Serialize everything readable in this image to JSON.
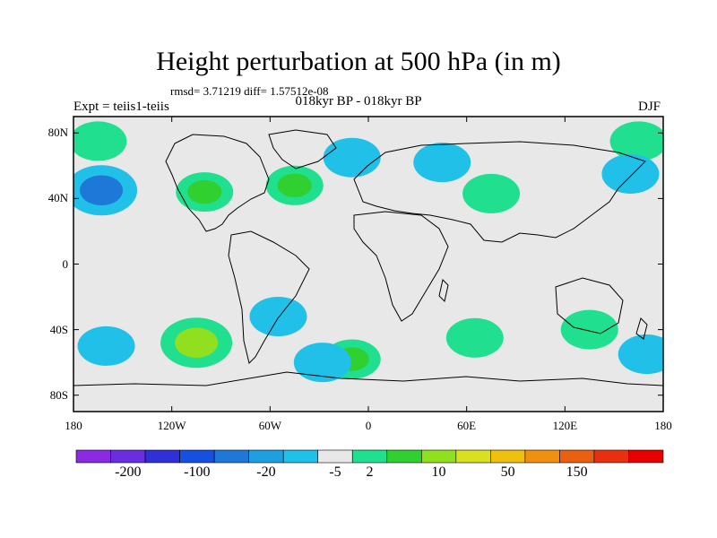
{
  "page": {
    "title": "Height perturbation at 500 hPa (in m)",
    "stats": "rmsd= 3.71219 diff= 1.57512e-08",
    "left_label": "Expt = teiis1-teiis",
    "center_label": "018kyr BP - 018kyr BP",
    "right_label": "DJF"
  },
  "chart_data": {
    "type": "heatmap",
    "title": "Height perturbation at 500 hPa (in m)",
    "xlabel": "",
    "ylabel": "",
    "xlim": [
      -180,
      180
    ],
    "ylim": [
      -90,
      90
    ],
    "x_ticks": [
      {
        "value": -180,
        "label": "180"
      },
      {
        "value": -120,
        "label": "120W"
      },
      {
        "value": -60,
        "label": "60W"
      },
      {
        "value": 0,
        "label": "0"
      },
      {
        "value": 60,
        "label": "60E"
      },
      {
        "value": 120,
        "label": "120E"
      },
      {
        "value": 180,
        "label": "180"
      }
    ],
    "y_ticks": [
      {
        "value": 80,
        "label": "80N"
      },
      {
        "value": 40,
        "label": "40N"
      },
      {
        "value": 0,
        "label": "0"
      },
      {
        "value": -40,
        "label": "40S"
      },
      {
        "value": -80,
        "label": "80S"
      }
    ],
    "colorbar": {
      "colors": [
        "#8a2be2",
        "#6a2ee0",
        "#3030d8",
        "#1550e0",
        "#1e78d8",
        "#1ea0e0",
        "#20c0e8",
        "#e8e8e8",
        "#20e090",
        "#30d030",
        "#90e020",
        "#d8e020",
        "#f0c010",
        "#f09010",
        "#e86010",
        "#e83010",
        "#e80000"
      ],
      "labels": [
        "-200",
        "-100",
        "-20",
        "-5",
        "2",
        "10",
        "50",
        "150"
      ]
    },
    "features": [
      {
        "lon": -163,
        "lat": 45,
        "value": -20
      },
      {
        "lon": -100,
        "lat": 44,
        "value": 10
      },
      {
        "lon": -45,
        "lat": 48,
        "value": 10
      },
      {
        "lon": 75,
        "lat": 43,
        "value": 5
      },
      {
        "lon": 45,
        "lat": 62,
        "value": -5
      },
      {
        "lon": -10,
        "lat": 65,
        "value": -5
      },
      {
        "lon": -165,
        "lat": 75,
        "value": 5
      },
      {
        "lon": 165,
        "lat": 75,
        "value": 5
      },
      {
        "lon": 160,
        "lat": 55,
        "value": -5
      },
      {
        "lon": -160,
        "lat": -50,
        "value": -5
      },
      {
        "lon": -105,
        "lat": -48,
        "value": 50
      },
      {
        "lon": -55,
        "lat": -32,
        "value": -5
      },
      {
        "lon": -10,
        "lat": -58,
        "value": 10
      },
      {
        "lon": -28,
        "lat": -60,
        "value": -5
      },
      {
        "lon": 65,
        "lat": -45,
        "value": 5
      },
      {
        "lon": 135,
        "lat": -40,
        "value": 5
      },
      {
        "lon": 170,
        "lat": -55,
        "value": -5
      }
    ]
  }
}
